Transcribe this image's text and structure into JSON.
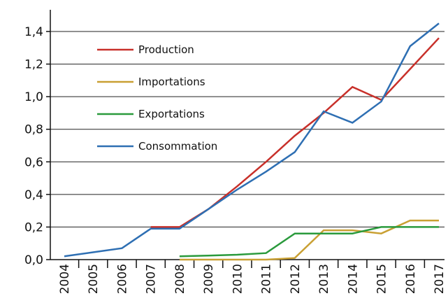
{
  "chart_data": {
    "type": "line",
    "x": [
      "2004",
      "2005",
      "2006",
      "2007",
      "2008",
      "2009",
      "2010",
      "2011",
      "2012",
      "2013",
      "2014",
      "2015",
      "2016",
      "2017"
    ],
    "ylim": [
      0,
      1.5
    ],
    "yticks": [
      "0,0",
      "0,2",
      "0,4",
      "0,6",
      "0,8",
      "1,0",
      "1,2",
      "1,4"
    ],
    "ytick_values": [
      0,
      0.2,
      0.4,
      0.6,
      0.8,
      1.0,
      1.2,
      1.4
    ],
    "grid": "horizontal",
    "legend_position": "top-left",
    "series": [
      {
        "name": "Production",
        "color": "#c8302a",
        "points": [
          [
            2007,
            0.2
          ],
          [
            2008,
            0.2
          ],
          [
            2009,
            0.31
          ],
          [
            2010,
            0.45
          ],
          [
            2011,
            0.6
          ],
          [
            2012,
            0.76
          ],
          [
            2013,
            0.9
          ],
          [
            2014,
            1.06
          ],
          [
            2015,
            0.98
          ],
          [
            2016,
            1.17
          ],
          [
            2017,
            1.36
          ]
        ]
      },
      {
        "name": "Importations",
        "color": "#c9a033",
        "points": [
          [
            2008,
            0.0
          ],
          [
            2009,
            0.0
          ],
          [
            2010,
            0.0
          ],
          [
            2011,
            0.0
          ],
          [
            2012,
            0.01
          ],
          [
            2013,
            0.18
          ],
          [
            2014,
            0.18
          ],
          [
            2015,
            0.16
          ],
          [
            2016,
            0.24
          ],
          [
            2017,
            0.24
          ]
        ]
      },
      {
        "name": "Exportations",
        "color": "#2a9a3c",
        "points": [
          [
            2008,
            0.02
          ],
          [
            2009,
            0.025
          ],
          [
            2010,
            0.03
          ],
          [
            2011,
            0.04
          ],
          [
            2012,
            0.16
          ],
          [
            2013,
            0.16
          ],
          [
            2014,
            0.16
          ],
          [
            2015,
            0.2
          ],
          [
            2016,
            0.2
          ],
          [
            2017,
            0.2
          ]
        ]
      },
      {
        "name": "Consommation",
        "color": "#2e6fb3",
        "points": [
          [
            2004,
            0.02
          ],
          [
            2005,
            0.045
          ],
          [
            2006,
            0.07
          ],
          [
            2007,
            0.19
          ],
          [
            2008,
            0.19
          ],
          [
            2009,
            0.31
          ],
          [
            2010,
            0.43
          ],
          [
            2011,
            0.54
          ],
          [
            2012,
            0.66
          ],
          [
            2013,
            0.91
          ],
          [
            2014,
            0.84
          ],
          [
            2015,
            0.97
          ],
          [
            2016,
            1.31
          ],
          [
            2017,
            1.45
          ]
        ]
      }
    ]
  }
}
